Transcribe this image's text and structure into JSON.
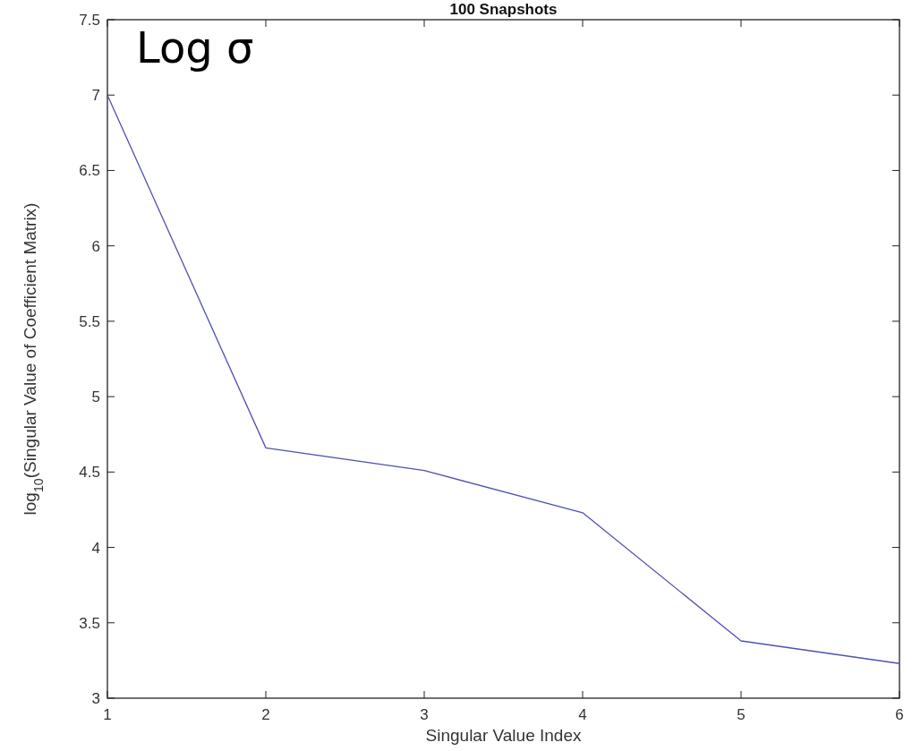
{
  "chart_data": {
    "type": "line",
    "title": "100 Snapshots",
    "xlabel": "Singular Value Index",
    "ylabel": "log$_{10}$(Singular Value of Coefficient Matrix)",
    "annotations": [
      "Log σ"
    ],
    "x": [
      1,
      2,
      3,
      4,
      5,
      6
    ],
    "series": [
      {
        "color": "#5050b8",
        "values": [
          7.0,
          4.66,
          4.51,
          4.23,
          3.38,
          3.23
        ]
      }
    ],
    "xlim": [
      1,
      6
    ],
    "xticks": [
      1,
      2,
      3,
      4,
      5,
      6
    ],
    "ylim": [
      3,
      7.5
    ],
    "yticks": [
      3,
      3.5,
      4,
      4.5,
      5,
      5.5,
      6,
      6.5,
      7,
      7.5
    ],
    "marker": "none",
    "line_style": "solid"
  }
}
